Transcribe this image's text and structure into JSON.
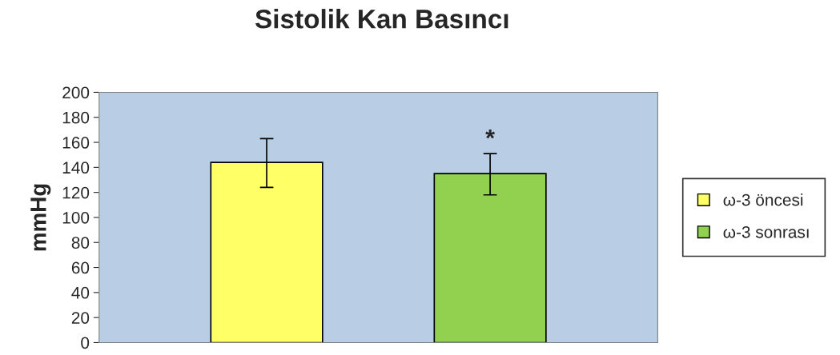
{
  "chart_data": {
    "type": "bar",
    "title": "Sistolik Kan Basıncı",
    "ylabel": "mmHg",
    "categories": [
      null,
      null
    ],
    "series": [
      {
        "name": "ω-3 öncesi",
        "color": "#ffff66",
        "values": [
          144,
          null
        ],
        "errors": [
          [
            124,
            163
          ],
          null
        ]
      },
      {
        "name": "ω-3 sonrası",
        "color": "#92d050",
        "values": [
          null,
          135
        ],
        "errors": [
          null,
          [
            118,
            151
          ]
        ]
      }
    ],
    "annotations": [
      "*"
    ],
    "ylim": [
      0,
      200
    ],
    "yticks": [
      0,
      20,
      40,
      60,
      80,
      100,
      120,
      140,
      160,
      180,
      200
    ],
    "grid": false,
    "legend": "right"
  }
}
